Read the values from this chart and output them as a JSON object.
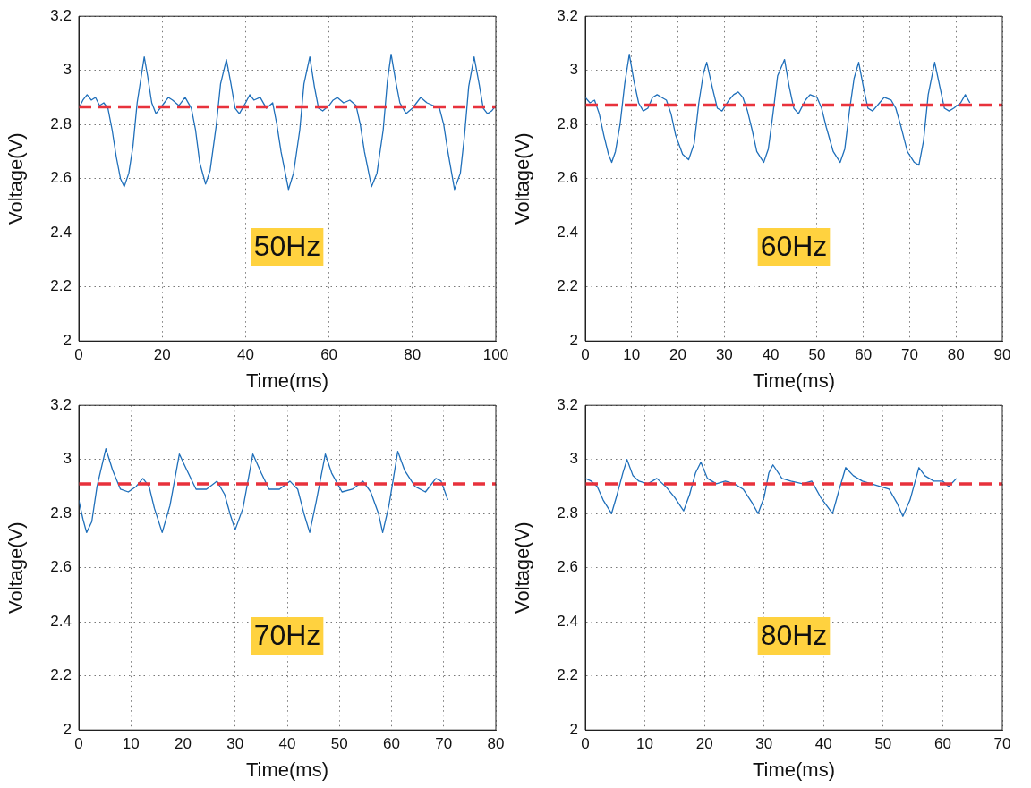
{
  "chart_data": [
    {
      "type": "line",
      "xlabel": "Time(ms)",
      "ylabel": "Voltage(V)",
      "annotations": [
        "50Hz"
      ],
      "xlim": [
        0,
        100
      ],
      "xticks": [
        0,
        20,
        40,
        60,
        80,
        100
      ],
      "ylim": [
        2,
        3.2
      ],
      "yticks": [
        2,
        2.2,
        2.4,
        2.6,
        2.8,
        3,
        3.2
      ],
      "grid": true,
      "marker": "none",
      "line_style": "solid",
      "ref_lines": [
        {
          "axis": "y",
          "value": 2.865,
          "color": "#e8323c",
          "line_style": "dashed"
        }
      ],
      "series": [
        {
          "color": "#1f6fba",
          "x": [
            0,
            1,
            2,
            3,
            4,
            5,
            6,
            7,
            8,
            9,
            10,
            10.9,
            12,
            13,
            14,
            15,
            15.7,
            16.5,
            17.5,
            18.5,
            19.5,
            20.5,
            21.5,
            22.5,
            24,
            25.5,
            27,
            28,
            29,
            30.4,
            31.5,
            33,
            34,
            35.4,
            36.5,
            37.5,
            38.5,
            40,
            41,
            42,
            43.5,
            45,
            46.5,
            47.5,
            48.5,
            50.3,
            51.5,
            53,
            54,
            55.4,
            56.5,
            57.5,
            58.5,
            60,
            61,
            62,
            63.5,
            65,
            66.5,
            67.5,
            68.5,
            70.2,
            71.5,
            73,
            74,
            74.9,
            76,
            77,
            78.5,
            80,
            81,
            82,
            83.5,
            85,
            86.5,
            87.5,
            88.5,
            90.1,
            91.5,
            92.5,
            93.5,
            94.8,
            96,
            97,
            98,
            99,
            100
          ],
          "values": [
            2.86,
            2.89,
            2.91,
            2.89,
            2.9,
            2.87,
            2.88,
            2.86,
            2.78,
            2.68,
            2.6,
            2.57,
            2.62,
            2.72,
            2.88,
            2.98,
            3.05,
            2.98,
            2.88,
            2.84,
            2.86,
            2.88,
            2.9,
            2.89,
            2.87,
            2.9,
            2.86,
            2.78,
            2.66,
            2.58,
            2.63,
            2.8,
            2.95,
            3.04,
            2.95,
            2.86,
            2.84,
            2.88,
            2.91,
            2.89,
            2.9,
            2.86,
            2.88,
            2.8,
            2.7,
            2.56,
            2.62,
            2.78,
            2.95,
            3.05,
            2.94,
            2.86,
            2.85,
            2.87,
            2.89,
            2.9,
            2.88,
            2.89,
            2.87,
            2.8,
            2.7,
            2.57,
            2.62,
            2.78,
            2.96,
            3.06,
            2.96,
            2.88,
            2.84,
            2.86,
            2.88,
            2.9,
            2.88,
            2.87,
            2.86,
            2.8,
            2.7,
            2.56,
            2.62,
            2.76,
            2.94,
            3.05,
            2.95,
            2.86,
            2.84,
            2.85,
            2.87
          ]
        }
      ]
    },
    {
      "type": "line",
      "xlabel": "Time(ms)",
      "ylabel": "Voltage(V)",
      "annotations": [
        "60Hz"
      ],
      "xlim": [
        0,
        90
      ],
      "xticks": [
        0,
        10,
        20,
        30,
        40,
        50,
        60,
        70,
        80,
        90
      ],
      "ylim": [
        2,
        3.2
      ],
      "yticks": [
        2,
        2.2,
        2.4,
        2.6,
        2.8,
        3,
        3.2
      ],
      "grid": true,
      "marker": "none",
      "line_style": "solid",
      "ref_lines": [
        {
          "axis": "y",
          "value": 2.872,
          "color": "#e8323c",
          "line_style": "dashed"
        }
      ],
      "series": [
        {
          "color": "#1f6fba",
          "x": [
            0,
            1,
            2,
            3,
            4,
            5,
            5.7,
            6.5,
            7.5,
            8.5,
            9.5,
            10.5,
            11.5,
            12.5,
            13.5,
            14.5,
            15.5,
            16.5,
            17.5,
            18.5,
            19.5,
            21,
            22.3,
            23.5,
            24.5,
            25.5,
            26.2,
            27.5,
            28.5,
            29.5,
            31,
            32,
            33,
            34,
            35,
            36,
            37,
            38.5,
            39.5,
            40.5,
            41.5,
            43,
            44,
            45,
            46,
            47.5,
            48.5,
            50,
            51,
            52,
            53.5,
            55,
            56,
            57,
            58,
            59,
            60,
            61,
            62,
            63.5,
            64.5,
            66,
            67,
            68,
            69.5,
            71,
            72,
            73,
            74,
            75.4,
            76.5,
            77.5,
            78.5,
            79.5,
            81,
            82,
            83
          ],
          "values": [
            2.9,
            2.88,
            2.89,
            2.84,
            2.76,
            2.69,
            2.66,
            2.7,
            2.8,
            2.95,
            3.06,
            2.96,
            2.88,
            2.85,
            2.86,
            2.9,
            2.91,
            2.9,
            2.89,
            2.84,
            2.76,
            2.69,
            2.67,
            2.73,
            2.88,
            2.99,
            3.03,
            2.93,
            2.86,
            2.85,
            2.89,
            2.91,
            2.92,
            2.9,
            2.85,
            2.78,
            2.7,
            2.66,
            2.71,
            2.84,
            2.98,
            3.04,
            2.94,
            2.86,
            2.84,
            2.89,
            2.91,
            2.9,
            2.86,
            2.79,
            2.7,
            2.66,
            2.71,
            2.85,
            2.97,
            3.03,
            2.94,
            2.86,
            2.85,
            2.88,
            2.9,
            2.89,
            2.86,
            2.8,
            2.7,
            2.66,
            2.65,
            2.74,
            2.91,
            3.03,
            2.94,
            2.86,
            2.85,
            2.86,
            2.88,
            2.91,
            2.88
          ]
        }
      ]
    },
    {
      "type": "line",
      "xlabel": "Time(ms)",
      "ylabel": "Voltage(V)",
      "annotations": [
        "70Hz"
      ],
      "xlim": [
        0,
        80
      ],
      "xticks": [
        0,
        10,
        20,
        30,
        40,
        50,
        60,
        70,
        80
      ],
      "ylim": [
        2,
        3.2
      ],
      "yticks": [
        2,
        2.2,
        2.4,
        2.6,
        2.8,
        3,
        3.2
      ],
      "grid": true,
      "marker": "none",
      "line_style": "solid",
      "ref_lines": [
        {
          "axis": "y",
          "value": 2.91,
          "color": "#e8323c",
          "line_style": "dashed"
        }
      ],
      "series": [
        {
          "color": "#1f6fba",
          "x": [
            0,
            0.8,
            1.5,
            2.5,
            3.5,
            5.2,
            6.5,
            8,
            9.5,
            11,
            12.3,
            13.5,
            14.5,
            16,
            17.5,
            19.3,
            20.5,
            22.5,
            24.5,
            26.5,
            28,
            29,
            30,
            31.5,
            33.4,
            35,
            36.5,
            38.5,
            40.5,
            42,
            43.2,
            44.3,
            45.5,
            47.3,
            48.5,
            50.5,
            52.5,
            54.5,
            56,
            57.5,
            58.3,
            59.5,
            61.2,
            62.5,
            64.5,
            66.5,
            68.5,
            69.5,
            70.8
          ],
          "values": [
            2.85,
            2.78,
            2.73,
            2.77,
            2.9,
            3.04,
            2.96,
            2.89,
            2.88,
            2.9,
            2.93,
            2.9,
            2.82,
            2.73,
            2.83,
            3.02,
            2.97,
            2.89,
            2.89,
            2.92,
            2.87,
            2.8,
            2.74,
            2.82,
            3.02,
            2.95,
            2.89,
            2.89,
            2.92,
            2.89,
            2.8,
            2.73,
            2.84,
            3.02,
            2.95,
            2.88,
            2.89,
            2.92,
            2.88,
            2.8,
            2.73,
            2.83,
            3.03,
            2.96,
            2.9,
            2.88,
            2.93,
            2.92,
            2.85
          ]
        }
      ]
    },
    {
      "type": "line",
      "xlabel": "Time(ms)",
      "ylabel": "Voltage(V)",
      "annotations": [
        "80Hz"
      ],
      "xlim": [
        0,
        70
      ],
      "xticks": [
        0,
        10,
        20,
        30,
        40,
        50,
        60,
        70
      ],
      "ylim": [
        2,
        3.2
      ],
      "yticks": [
        2,
        2.2,
        2.4,
        2.6,
        2.8,
        3,
        3.2
      ],
      "grid": true,
      "marker": "none",
      "line_style": "solid",
      "ref_lines": [
        {
          "axis": "y",
          "value": 2.91,
          "color": "#e8323c",
          "line_style": "dashed"
        }
      ],
      "series": [
        {
          "color": "#1f6fba",
          "x": [
            0,
            1,
            2,
            3,
            4.4,
            5.2,
            6.3,
            7,
            8,
            9,
            10.5,
            12,
            13.5,
            15,
            16.5,
            17.5,
            18.5,
            19.4,
            20.5,
            22,
            23.5,
            25,
            26.5,
            28,
            29,
            30,
            30.8,
            31.5,
            33,
            34.5,
            36.5,
            38,
            39.5,
            41.5,
            42.5,
            43.7,
            45,
            46.5,
            48,
            49.5,
            51,
            52.3,
            53.3,
            54.5,
            55.5,
            56,
            57,
            58.5,
            60,
            61,
            62.3
          ],
          "values": [
            2.93,
            2.92,
            2.9,
            2.85,
            2.8,
            2.86,
            2.95,
            3,
            2.94,
            2.92,
            2.91,
            2.93,
            2.9,
            2.86,
            2.81,
            2.87,
            2.95,
            2.99,
            2.93,
            2.91,
            2.92,
            2.91,
            2.89,
            2.84,
            2.8,
            2.86,
            2.95,
            2.98,
            2.93,
            2.92,
            2.91,
            2.92,
            2.86,
            2.8,
            2.88,
            2.97,
            2.94,
            2.92,
            2.91,
            2.9,
            2.89,
            2.84,
            2.79,
            2.85,
            2.93,
            2.97,
            2.94,
            2.92,
            2.92,
            2.9,
            2.93
          ]
        }
      ]
    }
  ]
}
